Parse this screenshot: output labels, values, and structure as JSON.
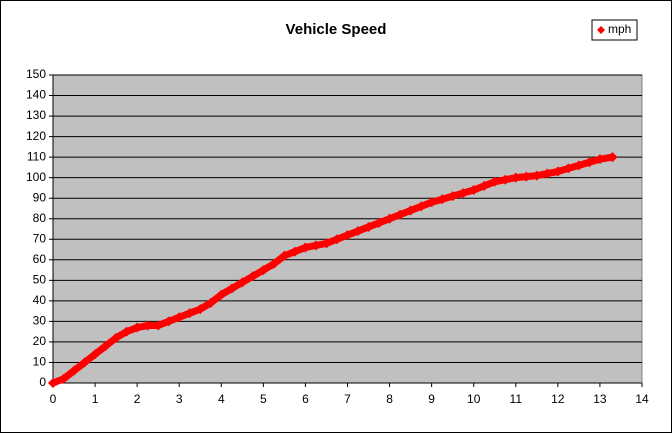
{
  "chart_data": {
    "type": "scatter",
    "title": "Vehicle Speed",
    "series": [
      {
        "name": "mph",
        "color": "#ff0000",
        "x": [
          0,
          0.25,
          0.5,
          0.75,
          1,
          1.25,
          1.5,
          1.75,
          2,
          2.25,
          2.5,
          2.75,
          3,
          3.25,
          3.5,
          3.75,
          4,
          4.25,
          4.5,
          4.75,
          5,
          5.25,
          5.5,
          5.75,
          6,
          6.25,
          6.5,
          6.75,
          7,
          7.25,
          7.5,
          7.75,
          8,
          8.25,
          8.5,
          8.75,
          9,
          9.25,
          9.5,
          9.75,
          10,
          10.25,
          10.5,
          10.75,
          11,
          11.25,
          11.5,
          11.75,
          12,
          12.25,
          12.5,
          12.75,
          13,
          13.3
        ],
        "values": [
          0,
          2,
          6,
          10,
          14,
          18,
          22,
          25,
          27,
          28,
          28,
          30,
          32,
          34,
          36,
          39,
          43,
          46,
          49,
          52,
          55,
          58,
          62,
          64,
          66,
          67,
          68,
          70,
          72,
          74,
          76,
          78,
          80,
          82,
          84,
          86,
          88,
          89.5,
          91,
          92.5,
          94,
          96,
          98,
          99,
          100,
          100.5,
          101,
          102,
          103,
          104.5,
          106,
          107.5,
          109,
          110
        ]
      }
    ],
    "xlim": [
      0,
      14
    ],
    "xticks": [
      0,
      1,
      2,
      3,
      4,
      5,
      6,
      7,
      8,
      9,
      10,
      11,
      12,
      13,
      14
    ],
    "ylim": [
      0,
      150
    ],
    "yticks": [
      0,
      10,
      20,
      30,
      40,
      50,
      60,
      70,
      80,
      90,
      100,
      110,
      120,
      130,
      140,
      150
    ],
    "grid": true,
    "legend": "top-right"
  }
}
